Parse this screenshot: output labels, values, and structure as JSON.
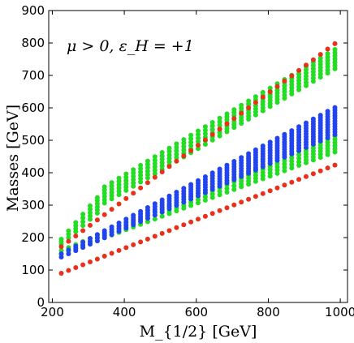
{
  "chart_data": {
    "type": "scatter",
    "title": "",
    "annotation": "μ > 0, ε_H = +1",
    "xlabel": "M_{1/2} [GeV]",
    "ylabel": "Masses [GeV]",
    "xlim": [
      190,
      1020
    ],
    "ylim": [
      0,
      900
    ],
    "xticks": [
      200,
      400,
      600,
      800,
      1000
    ],
    "yticks": [
      0,
      100,
      200,
      300,
      400,
      500,
      600,
      700,
      800,
      900
    ],
    "grid": false,
    "x_step": 20,
    "x_start": 225,
    "x_end": 1000,
    "colors": {
      "red": "#e8301a",
      "green": "#22dd22",
      "blue": "#2244ee"
    },
    "series": [
      {
        "color": "green",
        "band_low": {
          "x": [
            225,
            330,
            335,
            1000
          ],
          "y": [
            180,
            280,
            300,
            730
          ]
        },
        "band_high": {
          "x": [
            225,
            330,
            335,
            1000
          ],
          "y": [
            195,
            330,
            350,
            790
          ]
        },
        "column_spacing": 10
      },
      {
        "color": "green",
        "band_low": {
          "x": [
            225,
            1000
          ],
          "y": [
            150,
            470
          ]
        },
        "band_high": {
          "x": [
            225,
            1000
          ],
          "y": [
            160,
            520
          ]
        },
        "column_spacing": 10
      },
      {
        "color": "blue",
        "band_low": {
          "x": [
            225,
            1000
          ],
          "y": [
            140,
            525
          ]
        },
        "band_high": {
          "x": [
            225,
            1000
          ],
          "y": [
            150,
            610
          ]
        },
        "column_spacing": 8
      },
      {
        "color": "red",
        "x": [
          225,
          1000
        ],
        "y": [
          172,
          810
        ]
      },
      {
        "color": "red",
        "x": [
          225,
          1000
        ],
        "y": [
          90,
          430
        ]
      }
    ]
  }
}
